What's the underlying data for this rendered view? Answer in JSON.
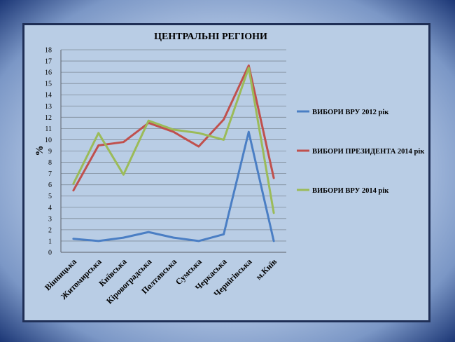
{
  "colors": {
    "frame": "#1f2f56",
    "plot_bg": "#b9cde5",
    "grid": "#7f8c99",
    "axis": "#5a6068"
  },
  "chart_data": {
    "type": "line",
    "title": "ЦЕНТРАЛЬНІ РЕГІОНИ",
    "xlabel": "",
    "ylabel": "%",
    "ylim": [
      0,
      18
    ],
    "yticks": [
      0,
      1,
      2,
      3,
      4,
      5,
      6,
      7,
      8,
      9,
      10,
      11,
      12,
      13,
      14,
      15,
      16,
      17,
      18
    ],
    "grid": true,
    "legend_position": "right",
    "categories": [
      "Вінницька",
      "Житомирська",
      "Київська",
      "Кіровоградська",
      "Полтавська",
      "Сумська",
      "Черкаська",
      "Чернігівська",
      "м.Київ"
    ],
    "series": [
      {
        "name": "ВИБОРИ ВРУ 2012 рік",
        "color": "#4a7ec4",
        "values": [
          1.2,
          1.0,
          1.3,
          1.8,
          1.3,
          1.0,
          1.6,
          10.7,
          1.0
        ]
      },
      {
        "name": "ВИБОРИ ПРЕЗИДЕНТА  2014 рік",
        "color": "#c0504d",
        "values": [
          5.5,
          9.5,
          9.8,
          11.5,
          10.7,
          9.4,
          11.8,
          16.6,
          6.6
        ]
      },
      {
        "name": "ВИБОРИ ВРУ 2014 рік",
        "color": "#9bbb59",
        "values": [
          6.1,
          10.6,
          6.9,
          11.7,
          10.9,
          10.6,
          10.0,
          16.4,
          3.5
        ]
      }
    ]
  }
}
